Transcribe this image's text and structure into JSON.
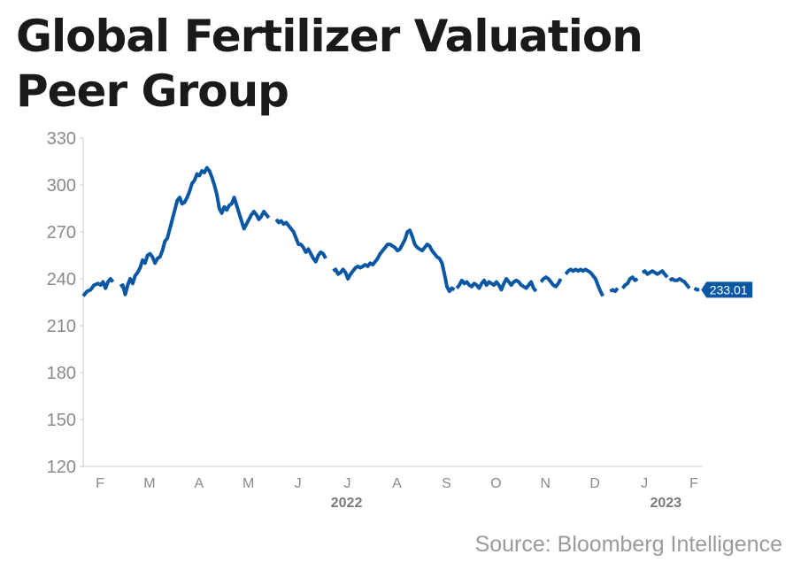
{
  "title_lines": [
    "Global Fertilizer Valuation",
    "Peer Group"
  ],
  "source": "Source: Bloomberg Intelligence",
  "colors": {
    "line": "#0a57a3",
    "axis_text": "#8a8a8a",
    "year_text": "#7a7a7a",
    "badge_bg": "#0a57a3",
    "badge_text": "#ffffff",
    "axis": "#cccccc"
  },
  "chart_data": {
    "type": "line",
    "title": "Global Fertilizer Valuation Peer Group",
    "ylim": [
      120,
      330
    ],
    "yticks": [
      330,
      300,
      270,
      240,
      210,
      180,
      150,
      120
    ],
    "xlim": [
      0,
      12.5
    ],
    "xticks": [
      {
        "x": 0.5,
        "label": "F"
      },
      {
        "x": 1.5,
        "label": "M"
      },
      {
        "x": 2.5,
        "label": "A"
      },
      {
        "x": 3.5,
        "label": "M"
      },
      {
        "x": 4.5,
        "label": "J"
      },
      {
        "x": 5.5,
        "label": "J"
      },
      {
        "x": 6.5,
        "label": "A"
      },
      {
        "x": 7.5,
        "label": "S"
      },
      {
        "x": 8.5,
        "label": "O"
      },
      {
        "x": 9.5,
        "label": "N"
      },
      {
        "x": 10.5,
        "label": "D"
      },
      {
        "x": 11.5,
        "label": "J"
      },
      {
        "x": 12.5,
        "label": "F"
      }
    ],
    "year_labels": [
      {
        "x": 5.5,
        "label": "2022"
      },
      {
        "x": 11.95,
        "label": "2023"
      }
    ],
    "last_value_label": "233.01",
    "series": [
      {
        "segments": [
          [
            [
              0,
              229
            ],
            [
              0.08,
              232
            ],
            [
              0.15,
              233
            ],
            [
              0.22,
              236
            ],
            [
              0.3,
              237
            ],
            [
              0.35,
              236
            ],
            [
              0.4,
              238
            ],
            [
              0.45,
              234
            ],
            [
              0.5,
              238
            ],
            [
              0.55,
              240
            ],
            [
              0.6,
              238
            ]
          ],
          [
            [
              0.75,
              235
            ],
            [
              0.8,
              236
            ],
            [
              0.85,
              230
            ],
            [
              0.9,
              236
            ],
            [
              0.95,
              240
            ],
            [
              1.0,
              237
            ],
            [
              1.05,
              242
            ],
            [
              1.1,
              244
            ],
            [
              1.15,
              247
            ],
            [
              1.2,
              252
            ],
            [
              1.25,
              250
            ],
            [
              1.3,
              255
            ],
            [
              1.35,
              256
            ],
            [
              1.4,
              254
            ],
            [
              1.45,
              250
            ],
            [
              1.5,
              253
            ],
            [
              1.55,
              254
            ],
            [
              1.6,
              258
            ],
            [
              1.65,
              264
            ],
            [
              1.7,
              266
            ],
            [
              1.75,
              272
            ],
            [
              1.8,
              278
            ],
            [
              1.85,
              284
            ],
            [
              1.9,
              290
            ],
            [
              1.95,
              292
            ],
            [
              2.0,
              288
            ],
            [
              2.05,
              289
            ],
            [
              2.1,
              292
            ],
            [
              2.15,
              296
            ],
            [
              2.2,
              301
            ],
            [
              2.25,
              303
            ],
            [
              2.3,
              307
            ],
            [
              2.35,
              306
            ],
            [
              2.4,
              309
            ],
            [
              2.45,
              308
            ],
            [
              2.5,
              311
            ],
            [
              2.55,
              309
            ],
            [
              2.6,
              305
            ],
            [
              2.65,
              300
            ],
            [
              2.7,
              294
            ],
            [
              2.75,
              285
            ],
            [
              2.8,
              282
            ],
            [
              2.85,
              286
            ],
            [
              2.9,
              284
            ],
            [
              2.95,
              287
            ],
            [
              3.0,
              288
            ],
            [
              3.05,
              292
            ],
            [
              3.1,
              287
            ],
            [
              3.15,
              282
            ],
            [
              3.2,
              277
            ],
            [
              3.25,
              272
            ],
            [
              3.3,
              275
            ],
            [
              3.35,
              278
            ],
            [
              3.4,
              281
            ],
            [
              3.45,
              283
            ],
            [
              3.5,
              281
            ],
            [
              3.55,
              278
            ],
            [
              3.6,
              280
            ],
            [
              3.65,
              283
            ],
            [
              3.7,
              281
            ],
            [
              3.75,
              279
            ]
          ],
          [
            [
              3.9,
              278
            ],
            [
              3.95,
              276
            ],
            [
              4.0,
              277
            ],
            [
              4.05,
              275
            ],
            [
              4.1,
              276
            ],
            [
              4.15,
              274
            ],
            [
              4.2,
              272
            ],
            [
              4.25,
              270
            ],
            [
              4.3,
              266
            ],
            [
              4.35,
              262
            ],
            [
              4.4,
              262
            ],
            [
              4.45,
              260
            ],
            [
              4.5,
              257
            ],
            [
              4.55,
              259
            ],
            [
              4.6,
              256
            ],
            [
              4.65,
              253
            ],
            [
              4.7,
              251
            ],
            [
              4.75,
              255
            ],
            [
              4.8,
              257
            ],
            [
              4.85,
              256
            ],
            [
              4.9,
              253
            ]
          ],
          [
            [
              5.05,
              245
            ],
            [
              5.1,
              246
            ],
            [
              5.15,
              243
            ],
            [
              5.2,
              244
            ],
            [
              5.25,
              246
            ],
            [
              5.3,
              244
            ],
            [
              5.35,
              240
            ],
            [
              5.4,
              243
            ],
            [
              5.45,
              245
            ],
            [
              5.5,
              247
            ],
            [
              5.55,
              248
            ],
            [
              5.6,
              247
            ],
            [
              5.65,
              248
            ],
            [
              5.7,
              249
            ],
            [
              5.75,
              248
            ],
            [
              5.8,
              250
            ],
            [
              5.85,
              249
            ],
            [
              5.9,
              251
            ],
            [
              5.95,
              253
            ],
            [
              6.0,
              256
            ],
            [
              6.05,
              258
            ],
            [
              6.1,
              260
            ],
            [
              6.15,
              262
            ],
            [
              6.2,
              262
            ],
            [
              6.25,
              261
            ],
            [
              6.3,
              260
            ],
            [
              6.35,
              258
            ],
            [
              6.4,
              259
            ],
            [
              6.45,
              262
            ],
            [
              6.5,
              265
            ],
            [
              6.55,
              270
            ],
            [
              6.6,
              271
            ],
            [
              6.65,
              267
            ],
            [
              6.7,
              262
            ],
            [
              6.75,
              260
            ],
            [
              6.8,
              259
            ],
            [
              6.85,
              258
            ],
            [
              6.9,
              260
            ],
            [
              6.95,
              262
            ],
            [
              7.0,
              261
            ],
            [
              7.05,
              258
            ],
            [
              7.1,
              256
            ],
            [
              7.15,
              254
            ],
            [
              7.2,
              253
            ],
            [
              7.25,
              250
            ],
            [
              7.3,
              243
            ],
            [
              7.35,
              235
            ],
            [
              7.4,
              232
            ],
            [
              7.45,
              234
            ],
            [
              7.5,
              233
            ]
          ],
          [
            [
              7.55,
              234
            ],
            [
              7.6,
              236
            ],
            [
              7.65,
              239
            ],
            [
              7.7,
              237
            ],
            [
              7.75,
              238
            ],
            [
              7.8,
              236
            ],
            [
              7.85,
              235
            ],
            [
              7.9,
              237
            ],
            [
              7.95,
              236
            ],
            [
              8.0,
              234
            ],
            [
              8.05,
              237
            ],
            [
              8.1,
              239
            ],
            [
              8.15,
              236
            ],
            [
              8.2,
              238
            ],
            [
              8.25,
              237
            ],
            [
              8.3,
              236
            ],
            [
              8.35,
              238
            ],
            [
              8.4,
              236
            ],
            [
              8.45,
              233
            ],
            [
              8.5,
              237
            ],
            [
              8.55,
              240
            ],
            [
              8.6,
              238
            ],
            [
              8.65,
              236
            ],
            [
              8.7,
              238
            ],
            [
              8.75,
              239
            ],
            [
              8.8,
              238
            ],
            [
              8.85,
              236
            ],
            [
              8.9,
              235
            ],
            [
              8.95,
              234
            ],
            [
              9.0,
              236
            ],
            [
              9.05,
              238
            ],
            [
              9.1,
              234
            ],
            [
              9.15,
              232
            ]
          ],
          [
            [
              9.25,
              238
            ],
            [
              9.3,
              240
            ],
            [
              9.35,
              241
            ],
            [
              9.4,
              240
            ],
            [
              9.45,
              238
            ],
            [
              9.5,
              236
            ],
            [
              9.55,
              235
            ],
            [
              9.6,
              237
            ],
            [
              9.65,
              240
            ]
          ],
          [
            [
              9.75,
              243
            ],
            [
              9.8,
              245
            ],
            [
              9.85,
              246
            ],
            [
              9.9,
              245
            ],
            [
              9.95,
              246
            ],
            [
              10.0,
              245
            ],
            [
              10.05,
              246
            ],
            [
              10.1,
              245
            ],
            [
              10.15,
              246
            ],
            [
              10.2,
              245
            ],
            [
              10.25,
              244
            ],
            [
              10.3,
              242
            ],
            [
              10.35,
              240
            ],
            [
              10.4,
              236
            ],
            [
              10.45,
              232
            ],
            [
              10.5,
              229
            ]
          ],
          [
            [
              10.65,
              232
            ],
            [
              10.7,
              233
            ],
            [
              10.75,
              232
            ],
            [
              10.8,
              234
            ]
          ],
          [
            [
              10.9,
              234
            ],
            [
              10.95,
              236
            ],
            [
              11.0,
              237
            ],
            [
              11.05,
              240
            ],
            [
              11.1,
              241
            ],
            [
              11.15,
              239
            ],
            [
              11.2,
              240
            ]
          ],
          [
            [
              11.3,
              244
            ],
            [
              11.35,
              245
            ],
            [
              11.4,
              243
            ],
            [
              11.45,
              244
            ],
            [
              11.5,
              245
            ],
            [
              11.55,
              244
            ],
            [
              11.6,
              243
            ],
            [
              11.65,
              244
            ],
            [
              11.7,
              245
            ],
            [
              11.75,
              243
            ],
            [
              11.8,
              241
            ]
          ],
          [
            [
              11.85,
              239
            ],
            [
              11.9,
              240
            ],
            [
              11.95,
              239
            ],
            [
              12.0,
              239
            ],
            [
              12.05,
              240
            ],
            [
              12.1,
              239
            ],
            [
              12.15,
              238
            ],
            [
              12.2,
              236
            ],
            [
              12.25,
              234
            ]
          ],
          [
            [
              12.35,
              234
            ],
            [
              12.4,
              233
            ],
            [
              12.45,
              233.01
            ]
          ]
        ]
      }
    ]
  }
}
